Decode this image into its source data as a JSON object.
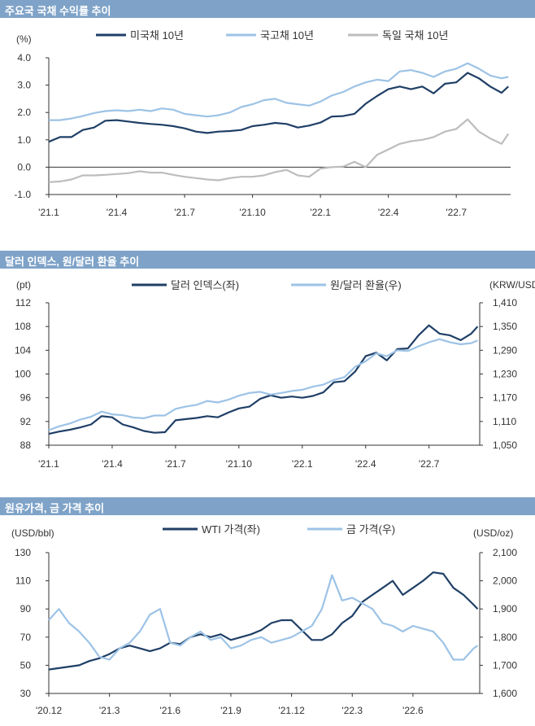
{
  "colors": {
    "banner": "#7fa3c8",
    "navy": "#1f3f66",
    "lightblue": "#9dc3e6",
    "gray": "#bdbdbd",
    "axis": "#333333"
  },
  "charts": [
    {
      "chart_data": {
        "type": "line",
        "title": "주요국 국채 수익률 추이",
        "ylabel": "(%)",
        "ylim": [
          -1.0,
          4.0
        ],
        "yticks": [
          -1.0,
          0.0,
          1.0,
          2.0,
          3.0,
          4.0
        ],
        "ytick_labels": [
          "-1.0",
          "0.0",
          "1.0",
          "2.0",
          "3.0",
          "4.0"
        ],
        "xlim": [
          0,
          20.4
        ],
        "xticks": [
          0,
          3,
          6,
          9,
          12,
          15,
          18
        ],
        "xtick_labels": [
          "'21.1",
          "'21.4",
          "'21.7",
          "'21.10",
          "'22.1",
          "'22.4",
          "'22.7"
        ],
        "legend": "top",
        "series": [
          {
            "name": "미국채 10년",
            "color": "#1f3f66",
            "x": [
              0,
              0.5,
              1,
              1.5,
              2,
              2.5,
              3,
              3.5,
              4,
              4.5,
              5,
              5.5,
              6,
              6.5,
              7,
              7.5,
              8,
              8.5,
              9,
              9.5,
              10,
              10.5,
              11,
              11.5,
              12,
              12.5,
              13,
              13.5,
              14,
              14.5,
              15,
              15.5,
              16,
              16.5,
              17,
              17.5,
              18,
              18.5,
              19,
              19.5,
              20,
              20.3
            ],
            "y": [
              0.93,
              1.1,
              1.1,
              1.36,
              1.45,
              1.7,
              1.72,
              1.67,
              1.62,
              1.58,
              1.55,
              1.5,
              1.42,
              1.3,
              1.25,
              1.3,
              1.32,
              1.36,
              1.5,
              1.55,
              1.62,
              1.58,
              1.45,
              1.52,
              1.63,
              1.85,
              1.87,
              1.95,
              2.32,
              2.6,
              2.85,
              2.95,
              2.85,
              2.95,
              2.7,
              3.05,
              3.1,
              3.45,
              3.25,
              2.95,
              2.72,
              2.95
            ]
          },
          {
            "name": "국고채 10년",
            "color": "#9dc3e6",
            "x": [
              0,
              0.5,
              1,
              1.5,
              2,
              2.5,
              3,
              3.5,
              4,
              4.5,
              5,
              5.5,
              6,
              6.5,
              7,
              7.5,
              8,
              8.5,
              9,
              9.5,
              10,
              10.5,
              11,
              11.5,
              12,
              12.5,
              13,
              13.5,
              14,
              14.5,
              15,
              15.5,
              16,
              16.5,
              17,
              17.5,
              18,
              18.5,
              19,
              19.5,
              20,
              20.3
            ],
            "y": [
              1.72,
              1.72,
              1.78,
              1.87,
              1.98,
              2.05,
              2.08,
              2.05,
              2.1,
              2.05,
              2.15,
              2.1,
              1.95,
              1.9,
              1.85,
              1.9,
              2.0,
              2.2,
              2.3,
              2.45,
              2.5,
              2.35,
              2.3,
              2.25,
              2.4,
              2.62,
              2.75,
              2.95,
              3.1,
              3.2,
              3.15,
              3.5,
              3.55,
              3.45,
              3.3,
              3.5,
              3.6,
              3.8,
              3.6,
              3.35,
              3.25,
              3.3
            ]
          },
          {
            "name": "독일 국채 10년",
            "color": "#bdbdbd",
            "x": [
              0,
              0.5,
              1,
              1.5,
              2,
              2.5,
              3,
              3.5,
              4,
              4.5,
              5,
              5.5,
              6,
              6.5,
              7,
              7.5,
              8,
              8.5,
              9,
              9.5,
              10,
              10.5,
              11,
              11.5,
              12,
              12.5,
              13,
              13.5,
              14,
              14.5,
              15,
              15.5,
              16,
              16.5,
              17,
              17.5,
              18,
              18.5,
              19,
              19.5,
              20,
              20.3
            ],
            "y": [
              -0.55,
              -0.52,
              -0.45,
              -0.3,
              -0.3,
              -0.28,
              -0.25,
              -0.22,
              -0.15,
              -0.2,
              -0.2,
              -0.28,
              -0.35,
              -0.4,
              -0.45,
              -0.48,
              -0.4,
              -0.35,
              -0.35,
              -0.3,
              -0.18,
              -0.1,
              -0.3,
              -0.35,
              -0.05,
              0.0,
              0.02,
              0.2,
              0.0,
              0.45,
              0.65,
              0.85,
              0.95,
              1.0,
              1.1,
              1.3,
              1.4,
              1.75,
              1.3,
              1.05,
              0.85,
              1.22
            ]
          }
        ]
      }
    },
    {
      "chart_data": {
        "type": "line",
        "title": "달러 인덱스, 원/달러 환율 추이",
        "ylabel": "(pt)",
        "ylabel_right": "(KRW/USD)",
        "ylim": [
          88,
          112
        ],
        "yticks": [
          88,
          92,
          96,
          100,
          104,
          108,
          112
        ],
        "ytick_labels": [
          "88",
          "92",
          "96",
          "100",
          "104",
          "108",
          "112"
        ],
        "ylim_right": [
          1050,
          1410
        ],
        "yticks_right": [
          1050,
          1110,
          1170,
          1230,
          1290,
          1350,
          1410
        ],
        "ytick_labels_right": [
          "1,050",
          "1,110",
          "1,170",
          "1,230",
          "1,290",
          "1,350",
          "1,410"
        ],
        "xlim": [
          0,
          20.4
        ],
        "xticks": [
          0,
          3,
          6,
          9,
          12,
          15,
          18
        ],
        "xtick_labels": [
          "'21.1",
          "'21.4",
          "'21.7",
          "'21.10",
          "'22.1",
          "'22.4",
          "'22.7"
        ],
        "legend": "top",
        "series": [
          {
            "name": "달러 인덱스(좌)",
            "color": "#1f3f66",
            "axis": "left",
            "x": [
              0,
              0.5,
              1,
              1.5,
              2,
              2.5,
              3,
              3.5,
              4,
              4.5,
              5,
              5.5,
              6,
              6.5,
              7,
              7.5,
              8,
              8.5,
              9,
              9.5,
              10,
              10.5,
              11,
              11.5,
              12,
              12.5,
              13,
              13.5,
              14,
              14.5,
              15,
              15.5,
              16,
              16.5,
              17,
              17.5,
              18,
              18.5,
              19,
              19.5,
              20,
              20.3
            ],
            "y": [
              89.9,
              90.3,
              90.6,
              91.0,
              91.5,
              92.9,
              92.7,
              91.5,
              91.0,
              90.4,
              90.1,
              90.2,
              92.2,
              92.4,
              92.6,
              92.9,
              92.7,
              93.5,
              94.2,
              94.5,
              95.8,
              96.4,
              96.0,
              96.2,
              96.0,
              96.3,
              96.9,
              98.6,
              98.8,
              100.4,
              103.0,
              103.6,
              102.3,
              104.2,
              104.3,
              106.5,
              108.2,
              106.8,
              106.5,
              105.7,
              106.8,
              108.0
            ]
          },
          {
            "name": "원/달러 환율(우)",
            "color": "#9dc3e6",
            "axis": "right",
            "x": [
              0,
              0.5,
              1,
              1.5,
              2,
              2.5,
              3,
              3.5,
              4,
              4.5,
              5,
              5.5,
              6,
              6.5,
              7,
              7.5,
              8,
              8.5,
              9,
              9.5,
              10,
              10.5,
              11,
              11.5,
              12,
              12.5,
              13,
              13.5,
              14,
              14.5,
              15,
              15.5,
              16,
              16.5,
              17,
              17.5,
              18,
              18.5,
              19,
              19.5,
              20,
              20.3
            ],
            "y": [
              1088,
              1098,
              1105,
              1115,
              1122,
              1135,
              1128,
              1126,
              1120,
              1118,
              1125,
              1125,
              1142,
              1148,
              1152,
              1162,
              1158,
              1165,
              1175,
              1182,
              1185,
              1178,
              1182,
              1187,
              1190,
              1198,
              1203,
              1215,
              1222,
              1248,
              1262,
              1282,
              1275,
              1290,
              1288,
              1300,
              1310,
              1318,
              1310,
              1305,
              1308,
              1315
            ]
          }
        ]
      }
    },
    {
      "chart_data": {
        "type": "line",
        "title": "원유가격, 금 가격 추이",
        "ylabel": "(USD/bbl)",
        "ylabel_right": "(USD/oz)",
        "ylim": [
          30,
          130
        ],
        "yticks": [
          30,
          50,
          70,
          90,
          110,
          130
        ],
        "ytick_labels": [
          "30",
          "50",
          "70",
          "90",
          "110",
          "130"
        ],
        "ylim_right": [
          1600,
          2100
        ],
        "yticks_right": [
          1600,
          1700,
          1800,
          1900,
          2000,
          2100
        ],
        "ytick_labels_right": [
          "1,600",
          "1,700",
          "1,800",
          "1,900",
          "2,000",
          "2,100"
        ],
        "xlim": [
          0,
          21.3
        ],
        "xticks": [
          0,
          3,
          6,
          9,
          12,
          15,
          18
        ],
        "xtick_labels": [
          "'20.12",
          "'21.3",
          "'21.6",
          "'21.9",
          "'21.12",
          "'22.3",
          "'22.6"
        ],
        "legend": "top",
        "series": [
          {
            "name": "WTI 가격(좌)",
            "color": "#1f3f66",
            "axis": "left",
            "x": [
              0,
              0.5,
              1,
              1.5,
              2,
              2.5,
              3,
              3.5,
              4,
              4.5,
              5,
              5.5,
              6,
              6.5,
              7,
              7.5,
              8,
              8.5,
              9,
              9.5,
              10,
              10.5,
              11,
              11.5,
              12,
              12.5,
              13,
              13.5,
              14,
              14.5,
              15,
              15.5,
              16,
              16.5,
              17,
              17.5,
              18,
              18.5,
              19,
              19.5,
              20,
              20.5,
              21,
              21.2
            ],
            "y": [
              47,
              48,
              49,
              50,
              53,
              55,
              58,
              62,
              64,
              62,
              60,
              62,
              66,
              65,
              70,
              72,
              70,
              72,
              68,
              70,
              72,
              75,
              80,
              82,
              82,
              75,
              68,
              68,
              72,
              80,
              85,
              95,
              100,
              105,
              110,
              100,
              105,
              110,
              116,
              115,
              105,
              100,
              93,
              90
            ]
          },
          {
            "name": "금 가격(우)",
            "color": "#9dc3e6",
            "axis": "right",
            "x": [
              0,
              0.5,
              1,
              1.5,
              2,
              2.5,
              3,
              3.5,
              4,
              4.5,
              5,
              5.5,
              6,
              6.5,
              7,
              7.5,
              8,
              8.5,
              9,
              9.5,
              10,
              10.5,
              11,
              11.5,
              12,
              12.5,
              13,
              13.5,
              14,
              14.5,
              15,
              15.5,
              16,
              16.5,
              17,
              17.5,
              18,
              18.5,
              19,
              19.5,
              20,
              20.5,
              21,
              21.2
            ],
            "y": [
              1860,
              1900,
              1850,
              1820,
              1780,
              1730,
              1720,
              1760,
              1780,
              1820,
              1880,
              1900,
              1780,
              1770,
              1800,
              1820,
              1790,
              1800,
              1760,
              1770,
              1790,
              1800,
              1780,
              1790,
              1800,
              1820,
              1840,
              1900,
              2020,
              1930,
              1940,
              1920,
              1900,
              1850,
              1840,
              1820,
              1840,
              1830,
              1820,
              1780,
              1720,
              1720,
              1760,
              1770
            ]
          }
        ]
      }
    }
  ]
}
